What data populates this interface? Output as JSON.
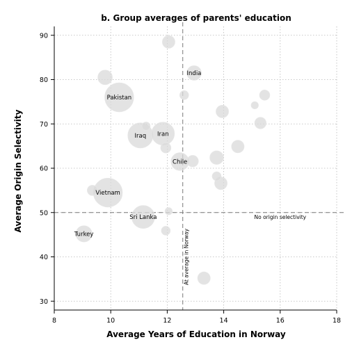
{
  "chart_data": {
    "type": "scatter",
    "title": "b. Group averages of parents' education",
    "xlabel": "Average Years of Education in Norway",
    "ylabel": "Average Origin Selectivity",
    "xlim": [
      8,
      18
    ],
    "ylim": [
      28,
      92
    ],
    "x_ticks": [
      8,
      10,
      12,
      14,
      16,
      18
    ],
    "y_ticks": [
      30,
      40,
      50,
      60,
      70,
      80,
      90
    ],
    "grid": true,
    "bubble_size": "group size",
    "reference_lines": [
      {
        "axis": "x",
        "value": 12.55,
        "label": "At average in Norway"
      },
      {
        "axis": "y",
        "value": 50,
        "label": "No origin selectivity"
      }
    ],
    "points": [
      {
        "x": 12.05,
        "y": 88.5,
        "size": 3,
        "label": ""
      },
      {
        "x": 12.95,
        "y": 81.5,
        "size": 4,
        "label": "India"
      },
      {
        "x": 9.8,
        "y": 80.5,
        "size": 4,
        "label": ""
      },
      {
        "x": 10.3,
        "y": 76.0,
        "size": 16,
        "label": "Pakistan"
      },
      {
        "x": 12.6,
        "y": 76.5,
        "size": 1.5,
        "label": ""
      },
      {
        "x": 15.45,
        "y": 76.5,
        "size": 2,
        "label": ""
      },
      {
        "x": 15.1,
        "y": 74.2,
        "size": 1,
        "label": ""
      },
      {
        "x": 13.95,
        "y": 72.8,
        "size": 3,
        "label": ""
      },
      {
        "x": 15.3,
        "y": 70.2,
        "size": 2.5,
        "label": ""
      },
      {
        "x": 11.25,
        "y": 69.5,
        "size": 1.3,
        "label": ""
      },
      {
        "x": 11.05,
        "y": 67.4,
        "size": 12,
        "label": "Iraq"
      },
      {
        "x": 11.85,
        "y": 67.8,
        "size": 10,
        "label": "Iran"
      },
      {
        "x": 11.95,
        "y": 64.6,
        "size": 2,
        "label": ""
      },
      {
        "x": 14.5,
        "y": 64.9,
        "size": 3,
        "label": ""
      },
      {
        "x": 13.75,
        "y": 62.4,
        "size": 3.5,
        "label": ""
      },
      {
        "x": 12.45,
        "y": 61.5,
        "size": 6,
        "label": "Chile"
      },
      {
        "x": 12.9,
        "y": 61.6,
        "size": 2.5,
        "label": ""
      },
      {
        "x": 13.75,
        "y": 58.2,
        "size": 1.5,
        "label": ""
      },
      {
        "x": 13.9,
        "y": 56.6,
        "size": 3,
        "label": ""
      },
      {
        "x": 9.35,
        "y": 55.0,
        "size": 2,
        "label": ""
      },
      {
        "x": 9.9,
        "y": 54.5,
        "size": 16,
        "label": "Vietnam"
      },
      {
        "x": 12.05,
        "y": 50.3,
        "size": 1,
        "label": ""
      },
      {
        "x": 11.15,
        "y": 49.0,
        "size": 10,
        "label": "Sri Lanka"
      },
      {
        "x": 11.95,
        "y": 45.9,
        "size": 1.5,
        "label": ""
      },
      {
        "x": 9.05,
        "y": 45.2,
        "size": 5,
        "label": "Turkey"
      },
      {
        "x": 13.3,
        "y": 35.2,
        "size": 3,
        "label": ""
      }
    ]
  }
}
